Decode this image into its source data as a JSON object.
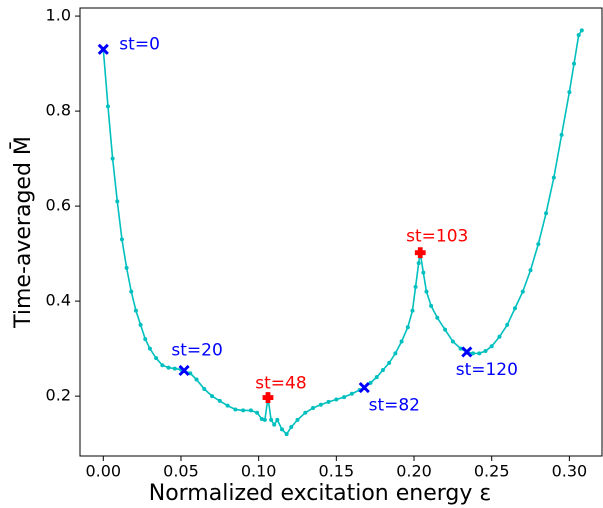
{
  "chart_data": {
    "type": "line",
    "xlabel": "Normalized excitation energy ε",
    "ylabel": "Time-averaged M̄",
    "xlim": [
      -0.015,
      0.321
    ],
    "ylim": [
      0.074,
      1.017
    ],
    "xticks": [
      {
        "value": 0,
        "label": "0.00"
      },
      {
        "value": 0.05,
        "label": "0.05"
      },
      {
        "value": 0.1,
        "label": "0.10"
      },
      {
        "value": 0.15,
        "label": "0.15"
      },
      {
        "value": 0.2,
        "label": "0.20"
      },
      {
        "value": 0.25,
        "label": "0.25"
      },
      {
        "value": 0.3,
        "label": "0.30"
      }
    ],
    "yticks": [
      0.2,
      0.4,
      0.6,
      0.8,
      {
        "value": 1,
        "label": "1.0"
      }
    ],
    "grid": false,
    "color": "#00bfbf",
    "x": [
      0,
      0.003,
      0.006,
      0.009,
      0.012,
      0.015,
      0.018,
      0.021,
      0.024,
      0.027,
      0.03,
      0.034,
      0.038,
      0.042,
      0.046,
      0.05,
      0.052,
      0.056,
      0.06,
      0.065,
      0.07,
      0.075,
      0.08,
      0.085,
      0.09,
      0.095,
      0.099,
      0.102,
      0.104,
      0.106,
      0.108,
      0.11,
      0.112,
      0.115,
      0.118,
      0.121,
      0.125,
      0.13,
      0.135,
      0.14,
      0.145,
      0.15,
      0.155,
      0.16,
      0.165,
      0.168,
      0.172,
      0.176,
      0.18,
      0.184,
      0.188,
      0.192,
      0.196,
      0.199,
      0.201,
      0.203,
      0.204,
      0.206,
      0.208,
      0.211,
      0.215,
      0.22,
      0.225,
      0.23,
      0.234,
      0.238,
      0.242,
      0.246,
      0.25,
      0.255,
      0.26,
      0.265,
      0.27,
      0.275,
      0.28,
      0.285,
      0.29,
      0.295,
      0.3,
      0.303,
      0.306,
      0.308
    ],
    "values": [
      0.93,
      0.81,
      0.7,
      0.61,
      0.53,
      0.47,
      0.42,
      0.38,
      0.35,
      0.32,
      0.3,
      0.28,
      0.265,
      0.26,
      0.258,
      0.256,
      0.254,
      0.248,
      0.235,
      0.215,
      0.2,
      0.19,
      0.18,
      0.172,
      0.17,
      0.17,
      0.165,
      0.152,
      0.15,
      0.197,
      0.15,
      0.14,
      0.15,
      0.13,
      0.12,
      0.135,
      0.15,
      0.165,
      0.175,
      0.182,
      0.188,
      0.193,
      0.198,
      0.205,
      0.213,
      0.218,
      0.228,
      0.24,
      0.255,
      0.27,
      0.29,
      0.315,
      0.345,
      0.38,
      0.43,
      0.48,
      0.502,
      0.46,
      0.42,
      0.39,
      0.365,
      0.34,
      0.315,
      0.3,
      0.293,
      0.29,
      0.29,
      0.295,
      0.305,
      0.325,
      0.35,
      0.385,
      0.42,
      0.465,
      0.52,
      0.585,
      0.66,
      0.75,
      0.84,
      0.9,
      0.96,
      0.97
    ],
    "markers": [
      {
        "label": "st=0",
        "x": 0,
        "y": 0.93,
        "color": "#0000ff",
        "symbol": "x"
      },
      {
        "label": "st=20",
        "x": 0.052,
        "y": 0.254,
        "color": "#0000ff",
        "symbol": "x"
      },
      {
        "label": "st=48",
        "x": 0.106,
        "y": 0.197,
        "color": "#ff0000",
        "symbol": "plus"
      },
      {
        "label": "st=82",
        "x": 0.168,
        "y": 0.218,
        "color": "#0000ff",
        "symbol": "x"
      },
      {
        "label": "st=103",
        "x": 0.204,
        "y": 0.502,
        "color": "#ff0000",
        "symbol": "plus"
      },
      {
        "label": "st=120",
        "x": 0.234,
        "y": 0.293,
        "color": "#0000ff",
        "symbol": "x"
      }
    ]
  }
}
